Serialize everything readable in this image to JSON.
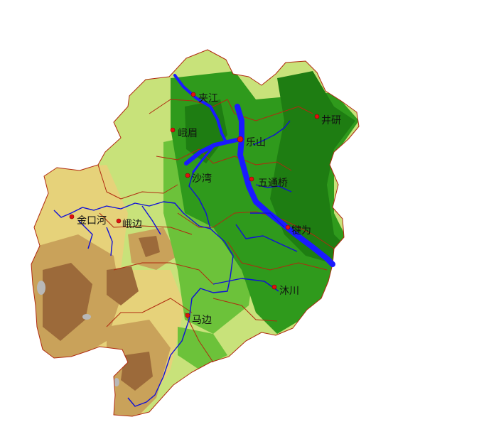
{
  "map": {
    "colors": {
      "lowland_dark": "#1e7d12",
      "lowland": "#2f9a1c",
      "hill_green": "#6cc23a",
      "hill_light": "#c8e27a",
      "upland_yellow": "#e6d27a",
      "upland_tan": "#c9a25a",
      "mountain_brown": "#9c6a3a",
      "peak_grey": "#b8b8b8",
      "river": "#1a1aff",
      "boundary": "#b02a10",
      "city_dot": "#e01010"
    },
    "places": [
      {
        "id": "jiajiang",
        "name": "夹江"
      },
      {
        "id": "jingyan",
        "name": "井研"
      },
      {
        "id": "emei",
        "name": "峨眉"
      },
      {
        "id": "leshan",
        "name": "乐山"
      },
      {
        "id": "shawan",
        "name": "沙湾"
      },
      {
        "id": "wutongqiao",
        "name": "五通桥"
      },
      {
        "id": "jinkouhe",
        "name": "金口河"
      },
      {
        "id": "ebian",
        "name": "峨边"
      },
      {
        "id": "qianwei",
        "name": "犍为"
      },
      {
        "id": "muchuan",
        "name": "沐川"
      },
      {
        "id": "mabian",
        "name": "马边"
      }
    ]
  }
}
